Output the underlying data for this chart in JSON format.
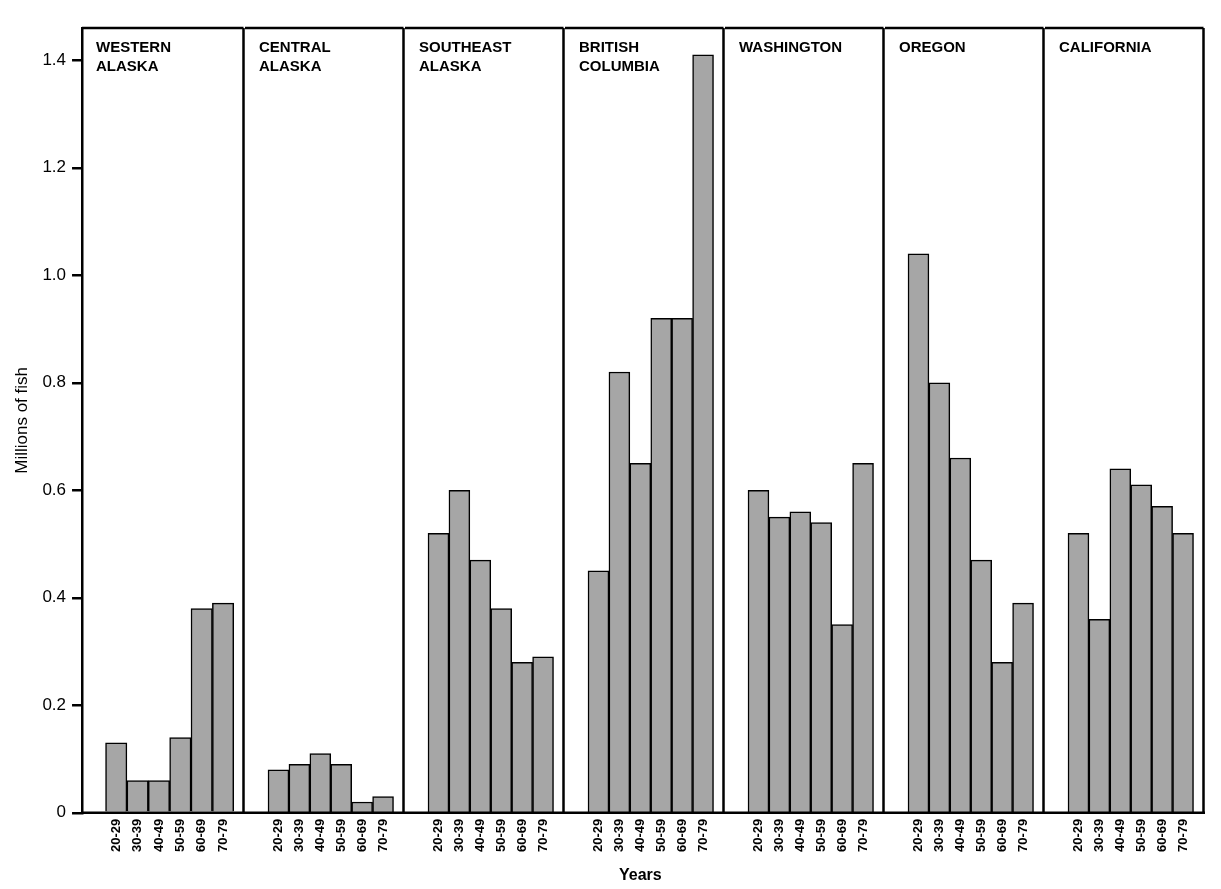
{
  "chart_data": [
    {
      "type": "bar",
      "title": "WESTERN ALASKA",
      "ylabel": "Millions of fish",
      "categories": [
        "20-29",
        "30-39",
        "40-49",
        "50-59",
        "60-69",
        "70-79"
      ],
      "values": [
        0.13,
        0.06,
        0.06,
        0.14,
        0.38,
        0.39
      ],
      "color": "#a6a6a6",
      "ylim": [
        0,
        1.46
      ],
      "yticks": [
        0,
        0.2,
        0.4,
        0.6,
        0.8,
        {
          "value": 1,
          "label": "1.0"
        },
        1.2,
        1.4
      ]
    },
    {
      "type": "bar",
      "title": "CENTRAL ALASKA",
      "categories": [
        "20-29",
        "30-39",
        "40-49",
        "50-59",
        "60-69",
        "70-79"
      ],
      "values": [
        0.08,
        0.09,
        0.11,
        0.09,
        0.02,
        0.03
      ],
      "color": "#a6a6a6",
      "ylim": [
        0,
        1.46
      ],
      "tick_labels": "x"
    },
    {
      "type": "bar",
      "title": "SOUTHEAST ALASKA",
      "categories": [
        "20-29",
        "30-39",
        "40-49",
        "50-59",
        "60-69",
        "70-79"
      ],
      "values": [
        0.52,
        0.6,
        0.47,
        0.38,
        0.28,
        0.29
      ],
      "color": "#a6a6a6",
      "ylim": [
        0,
        1.46
      ],
      "tick_labels": "x"
    },
    {
      "type": "bar",
      "title": "BRITISH COLUMBIA",
      "xlabel": "Years",
      "categories": [
        "20-29",
        "30-39",
        "40-49",
        "50-59",
        "60-69",
        "70-79"
      ],
      "values": [
        0.45,
        0.82,
        0.65,
        0.92,
        0.92,
        1.41
      ],
      "color": "#a6a6a6",
      "ylim": [
        0,
        1.46
      ],
      "tick_labels": "x"
    },
    {
      "type": "bar",
      "title": "WASHINGTON",
      "categories": [
        "20-29",
        "30-39",
        "40-49",
        "50-59",
        "60-69",
        "70-79"
      ],
      "values": [
        0.6,
        0.55,
        0.56,
        0.54,
        0.35,
        0.65
      ],
      "color": "#a6a6a6",
      "ylim": [
        0,
        1.46
      ],
      "tick_labels": "x"
    },
    {
      "type": "bar",
      "title": "OREGON",
      "categories": [
        "20-29",
        "30-39",
        "40-49",
        "50-59",
        "60-69",
        "70-79"
      ],
      "values": [
        1.04,
        0.8,
        0.66,
        0.47,
        0.28,
        0.39
      ],
      "color": "#a6a6a6",
      "ylim": [
        0,
        1.46
      ],
      "tick_labels": "x"
    },
    {
      "type": "bar",
      "title": "CALIFORNIA",
      "categories": [
        "20-29",
        "30-39",
        "40-49",
        "50-59",
        "60-69",
        "70-79"
      ],
      "values": [
        0.52,
        0.36,
        0.64,
        0.61,
        0.57,
        0.52
      ],
      "color": "#a6a6a6",
      "ylim": [
        0,
        1.46
      ],
      "tick_labels": "x"
    }
  ]
}
